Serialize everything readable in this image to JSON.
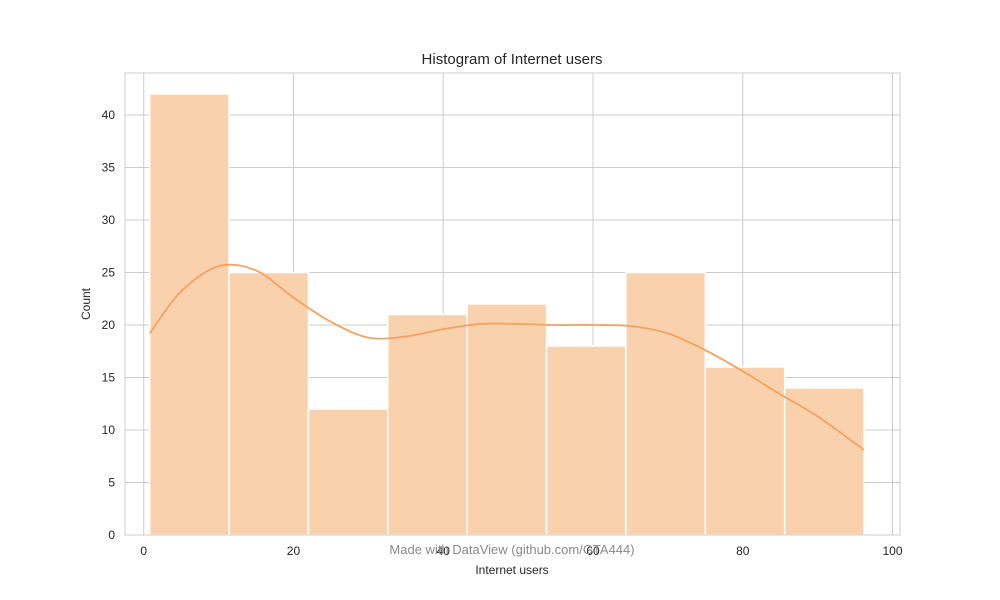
{
  "chart_data": {
    "type": "bar",
    "title": "Histogram of Internet users",
    "xlabel": "Internet users",
    "ylabel": "Count",
    "bin_edges": [
      0.8,
      11.4,
      22.0,
      32.6,
      43.2,
      53.8,
      64.4,
      75.0,
      85.6,
      96.2
    ],
    "values": [
      42,
      25,
      12,
      21,
      22,
      18,
      25,
      16,
      14
    ],
    "kde": {
      "x": [
        0.8,
        5,
        10,
        15,
        20,
        25,
        30,
        35,
        40,
        45,
        50,
        55,
        60,
        65,
        70,
        75,
        80,
        85,
        90,
        96.2
      ],
      "y": [
        19.2,
        23.2,
        25.6,
        25.2,
        22.6,
        20.3,
        18.8,
        18.9,
        19.6,
        20.1,
        20.1,
        20.0,
        20.0,
        19.9,
        19.2,
        17.6,
        15.6,
        13.4,
        11.3,
        8.1
      ]
    },
    "xlim": [
      -2.5,
      101
    ],
    "ylim": [
      0,
      44
    ],
    "xticks": [
      0,
      20,
      40,
      60,
      80,
      100
    ],
    "yticks": [
      0,
      5,
      10,
      15,
      20,
      25,
      30,
      35,
      40
    ],
    "grid": true,
    "colors": {
      "bar_fill": "#f9d1ad",
      "bar_edge": "#ffffff",
      "kde_line": "#f4a261",
      "grid": "#cccccc",
      "frame": "#cccccc"
    }
  },
  "watermark": "Made with DataView (github.com/GTA444)"
}
